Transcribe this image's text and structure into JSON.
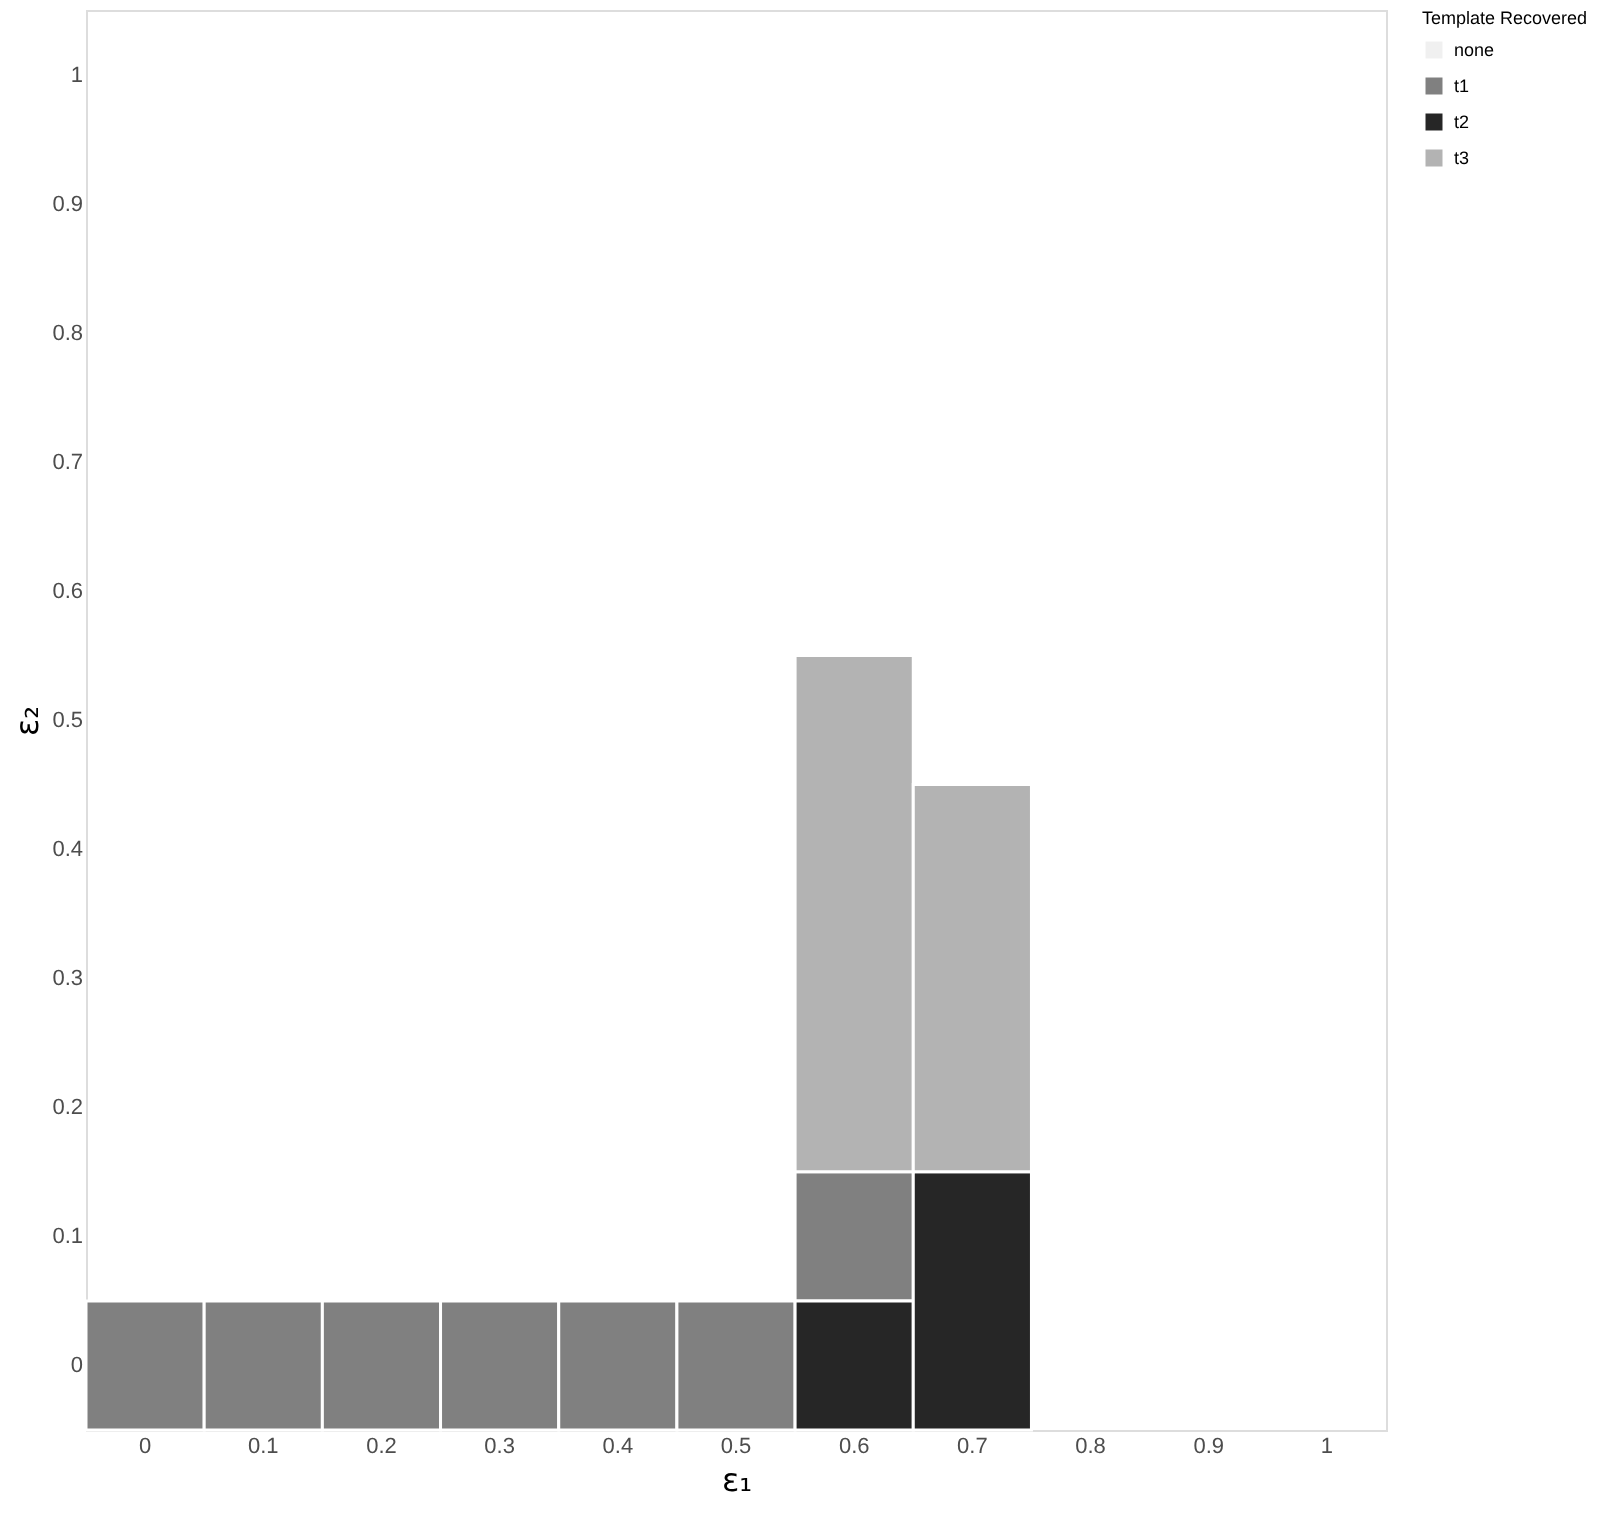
{
  "chart_data": {
    "type": "bar",
    "xlabel": "ε₁",
    "ylabel": "ε₂",
    "legend_title": "Template Recovered",
    "legend": "right",
    "grid": false,
    "categories": [
      "0",
      "0.1",
      "0.2",
      "0.3",
      "0.4",
      "0.5",
      "0.6",
      "0.7",
      "0.8",
      "0.9",
      "1"
    ],
    "ylim": [
      -0.05,
      1.05
    ],
    "yticks": [
      0,
      0.1,
      0.2,
      0.3,
      0.4,
      0.5,
      0.6,
      0.7,
      0.8,
      0.9,
      1
    ],
    "series": [
      {
        "name": "none",
        "color": "#f0f0f0",
        "values": [
          null,
          null,
          null,
          null,
          null,
          null,
          null,
          null,
          null,
          null,
          null
        ],
        "base": [
          null,
          null,
          null,
          null,
          null,
          null,
          null,
          null,
          null,
          null,
          null
        ]
      },
      {
        "name": "t1",
        "color": "#808080",
        "values": [
          0.1,
          0.1,
          0.1,
          0.1,
          0.1,
          0.1,
          0.1,
          null,
          null,
          null,
          null
        ],
        "base": [
          -0.05,
          -0.05,
          -0.05,
          -0.05,
          -0.05,
          -0.05,
          0.05,
          null,
          null,
          null,
          null
        ]
      },
      {
        "name": "t2",
        "color": "#262626",
        "values": [
          null,
          null,
          null,
          null,
          null,
          null,
          0.1,
          0.2,
          null,
          null,
          null
        ],
        "base": [
          null,
          null,
          null,
          null,
          null,
          null,
          -0.05,
          -0.05,
          null,
          null,
          null
        ]
      },
      {
        "name": "t3",
        "color": "#b3b3b3",
        "values": [
          null,
          null,
          null,
          null,
          null,
          null,
          0.4,
          0.3,
          null,
          null,
          null
        ],
        "base": [
          null,
          null,
          null,
          null,
          null,
          null,
          0.15,
          0.15,
          null,
          null,
          null
        ]
      }
    ]
  }
}
